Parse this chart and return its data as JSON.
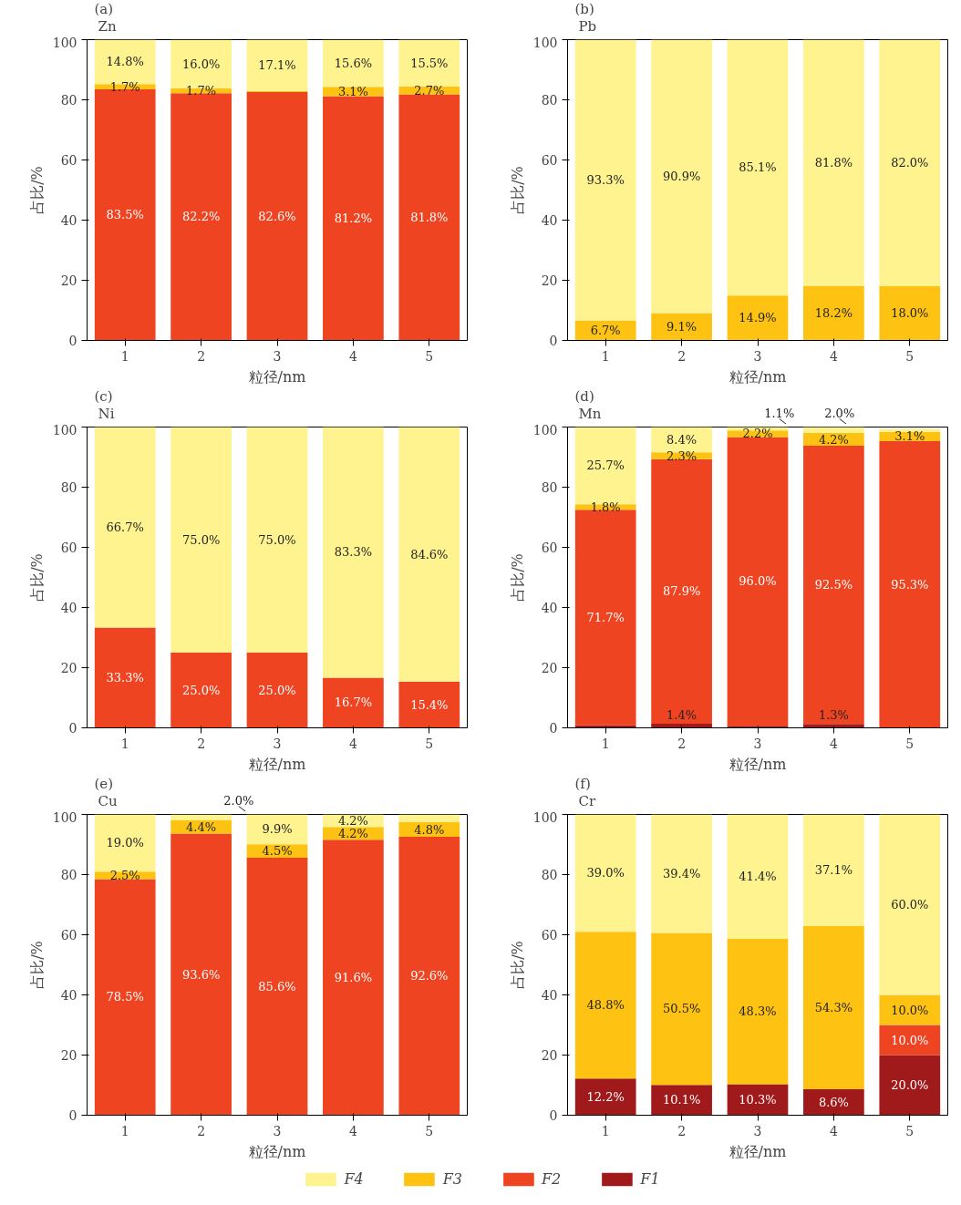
{
  "chart_data": [
    {
      "type": "bar",
      "stacked": true,
      "title": "(a)",
      "subtitle": "Zn",
      "xlabel": "粒径/nm",
      "ylabel": "占比/%",
      "categories": [
        "1",
        "2",
        "3",
        "4",
        "5"
      ],
      "ylim": [
        0,
        100
      ],
      "yticks": [
        0,
        20,
        40,
        60,
        80,
        100
      ],
      "grid": false,
      "series": [
        {
          "color": "#a01a1c",
          "values": [
            0,
            0,
            0,
            0,
            0
          ],
          "value_labels": [
            null,
            null,
            null,
            null,
            null
          ]
        },
        {
          "color": "#ee4422",
          "values": [
            83.5,
            82.2,
            82.6,
            81.2,
            81.8
          ],
          "value_labels": [
            "83.5%",
            "82.2%",
            "82.6%",
            "81.2%",
            "81.8%"
          ]
        },
        {
          "color": "#fec212",
          "values": [
            1.7,
            1.7,
            0.3,
            3.1,
            2.7
          ],
          "value_labels": [
            "1.7%",
            "1.7%",
            null,
            "3.1%",
            "2.7%"
          ]
        },
        {
          "color": "#fef38f",
          "values": [
            14.8,
            16.0,
            17.1,
            15.6,
            15.5
          ],
          "value_labels": [
            "14.8%",
            "16.0%",
            "17.1%",
            "15.6%",
            "15.5%"
          ]
        }
      ]
    },
    {
      "type": "bar",
      "stacked": true,
      "title": "(b)",
      "subtitle": "Pb",
      "xlabel": "粒径/nm",
      "ylabel": "占比/%",
      "categories": [
        "1",
        "2",
        "3",
        "4",
        "5"
      ],
      "ylim": [
        0,
        100
      ],
      "yticks": [
        0,
        20,
        40,
        60,
        80,
        100
      ],
      "grid": false,
      "series": [
        {
          "color": "#a01a1c",
          "values": [
            0,
            0,
            0,
            0,
            0
          ],
          "value_labels": [
            null,
            null,
            null,
            null,
            null
          ]
        },
        {
          "color": "#ee4422",
          "values": [
            0,
            0,
            0,
            0,
            0
          ],
          "value_labels": [
            null,
            null,
            null,
            null,
            null
          ]
        },
        {
          "color": "#fec212",
          "values": [
            6.7,
            9.1,
            14.9,
            18.2,
            18.0
          ],
          "value_labels": [
            "6.7%",
            "9.1%",
            "14.9%",
            "18.2%",
            "18.0%"
          ]
        },
        {
          "color": "#fef38f",
          "values": [
            93.3,
            90.9,
            85.1,
            81.8,
            82.0
          ],
          "value_labels": [
            "93.3%",
            "90.9%",
            "85.1%",
            "81.8%",
            "82.0%"
          ]
        }
      ]
    },
    {
      "type": "bar",
      "stacked": true,
      "title": "(c)",
      "subtitle": "Ni",
      "xlabel": "粒径/nm",
      "ylabel": "占比/%",
      "categories": [
        "1",
        "2",
        "3",
        "4",
        "5"
      ],
      "ylim": [
        0,
        100
      ],
      "yticks": [
        0,
        20,
        40,
        60,
        80,
        100
      ],
      "grid": false,
      "series": [
        {
          "color": "#a01a1c",
          "values": [
            0,
            0,
            0,
            0,
            0
          ],
          "value_labels": [
            null,
            null,
            null,
            null,
            null
          ]
        },
        {
          "color": "#ee4422",
          "values": [
            33.3,
            25.0,
            25.0,
            16.7,
            15.4
          ],
          "value_labels": [
            "33.3%",
            "25.0%",
            "25.0%",
            "16.7%",
            "15.4%"
          ]
        },
        {
          "color": "#fec212",
          "values": [
            0,
            0,
            0,
            0,
            0
          ],
          "value_labels": [
            null,
            null,
            null,
            null,
            null
          ]
        },
        {
          "color": "#fef38f",
          "values": [
            66.7,
            75.0,
            75.0,
            83.3,
            84.6
          ],
          "value_labels": [
            "66.7%",
            "75.0%",
            "75.0%",
            "83.3%",
            "84.6%"
          ]
        }
      ]
    },
    {
      "type": "bar",
      "stacked": true,
      "title": "(d)",
      "subtitle": "Mn",
      "xlabel": "粒径/nm",
      "ylabel": "占比/%",
      "categories": [
        "1",
        "2",
        "3",
        "4",
        "5"
      ],
      "ylim": [
        0,
        100
      ],
      "yticks": [
        0,
        20,
        40,
        60,
        80,
        100
      ],
      "grid": false,
      "series": [
        {
          "color": "#a01a1c",
          "values": [
            0.8,
            1.4,
            0.7,
            1.3,
            null
          ],
          "value_labels": [
            null,
            "1.4%",
            null,
            "1.3%",
            null
          ]
        },
        {
          "color": "#ee4422",
          "values": [
            71.7,
            87.9,
            96.0,
            92.5,
            95.3
          ],
          "value_labels": [
            "71.7%",
            "87.9%",
            "96.0%",
            "92.5%",
            "95.3%"
          ]
        },
        {
          "color": "#fec212",
          "values": [
            1.8,
            2.3,
            2.2,
            4.2,
            3.1
          ],
          "value_labels": [
            "1.8%",
            "2.3%",
            "2.2%",
            "4.2%",
            "3.1%"
          ]
        },
        {
          "color": "#fef38f",
          "values": [
            25.7,
            8.4,
            1.1,
            2.0,
            1.0
          ],
          "value_labels": [
            "25.7%",
            "8.4%",
            "1.1%",
            "2.0%",
            null
          ]
        }
      ]
    },
    {
      "type": "bar",
      "stacked": true,
      "title": "(e)",
      "subtitle": "Cu",
      "xlabel": "粒径/nm",
      "ylabel": "占比/%",
      "categories": [
        "1",
        "2",
        "3",
        "4",
        "5"
      ],
      "ylim": [
        0,
        100
      ],
      "yticks": [
        0,
        20,
        40,
        60,
        80,
        100
      ],
      "grid": false,
      "series": [
        {
          "color": "#a01a1c",
          "values": [
            0,
            0,
            0,
            0,
            0
          ],
          "value_labels": [
            null,
            null,
            null,
            null,
            null
          ]
        },
        {
          "color": "#ee4422",
          "values": [
            78.5,
            93.6,
            85.6,
            91.6,
            92.6
          ],
          "value_labels": [
            "78.5%",
            "93.6%",
            "85.6%",
            "91.6%",
            "92.6%"
          ]
        },
        {
          "color": "#fec212",
          "values": [
            2.5,
            4.4,
            4.5,
            4.2,
            4.8
          ],
          "value_labels": [
            "2.5%",
            "4.4%",
            "4.5%",
            "4.2%",
            "4.8%"
          ]
        },
        {
          "color": "#fef38f",
          "values": [
            19.0,
            2.0,
            9.9,
            4.2,
            2.6
          ],
          "value_labels": [
            "19.0%",
            "2.0%",
            "9.9%",
            "4.2%",
            null
          ]
        }
      ]
    },
    {
      "type": "bar",
      "stacked": true,
      "title": "(f)",
      "subtitle": "Cr",
      "xlabel": "粒径/nm",
      "ylabel": "占比/%",
      "categories": [
        "1",
        "2",
        "3",
        "4",
        "5"
      ],
      "ylim": [
        0,
        100
      ],
      "yticks": [
        0,
        20,
        40,
        60,
        80,
        100
      ],
      "grid": false,
      "legend": "bottom",
      "series": [
        {
          "name": "F1",
          "color": "#a01a1c",
          "values": [
            12.2,
            10.1,
            10.3,
            8.6,
            20.0
          ],
          "value_labels": [
            "12.2%",
            "10.1%",
            "10.3%",
            "8.6%",
            "20.0%"
          ]
        },
        {
          "name": "F2",
          "color": "#ee4422",
          "values": [
            0,
            0,
            0,
            0,
            10.0
          ],
          "value_labels": [
            null,
            null,
            null,
            null,
            "10.0%"
          ]
        },
        {
          "name": "F3",
          "color": "#fec212",
          "values": [
            48.8,
            50.5,
            48.3,
            54.3,
            10.0
          ],
          "value_labels": [
            "48.8%",
            "50.5%",
            "48.3%",
            "54.3%",
            "10.0%"
          ]
        },
        {
          "name": "F4",
          "color": "#fef38f",
          "values": [
            39.0,
            39.4,
            41.4,
            37.1,
            60.0
          ],
          "value_labels": [
            "39.0%",
            "39.4%",
            "41.4%",
            "37.1%",
            "60.0%"
          ]
        }
      ]
    }
  ]
}
